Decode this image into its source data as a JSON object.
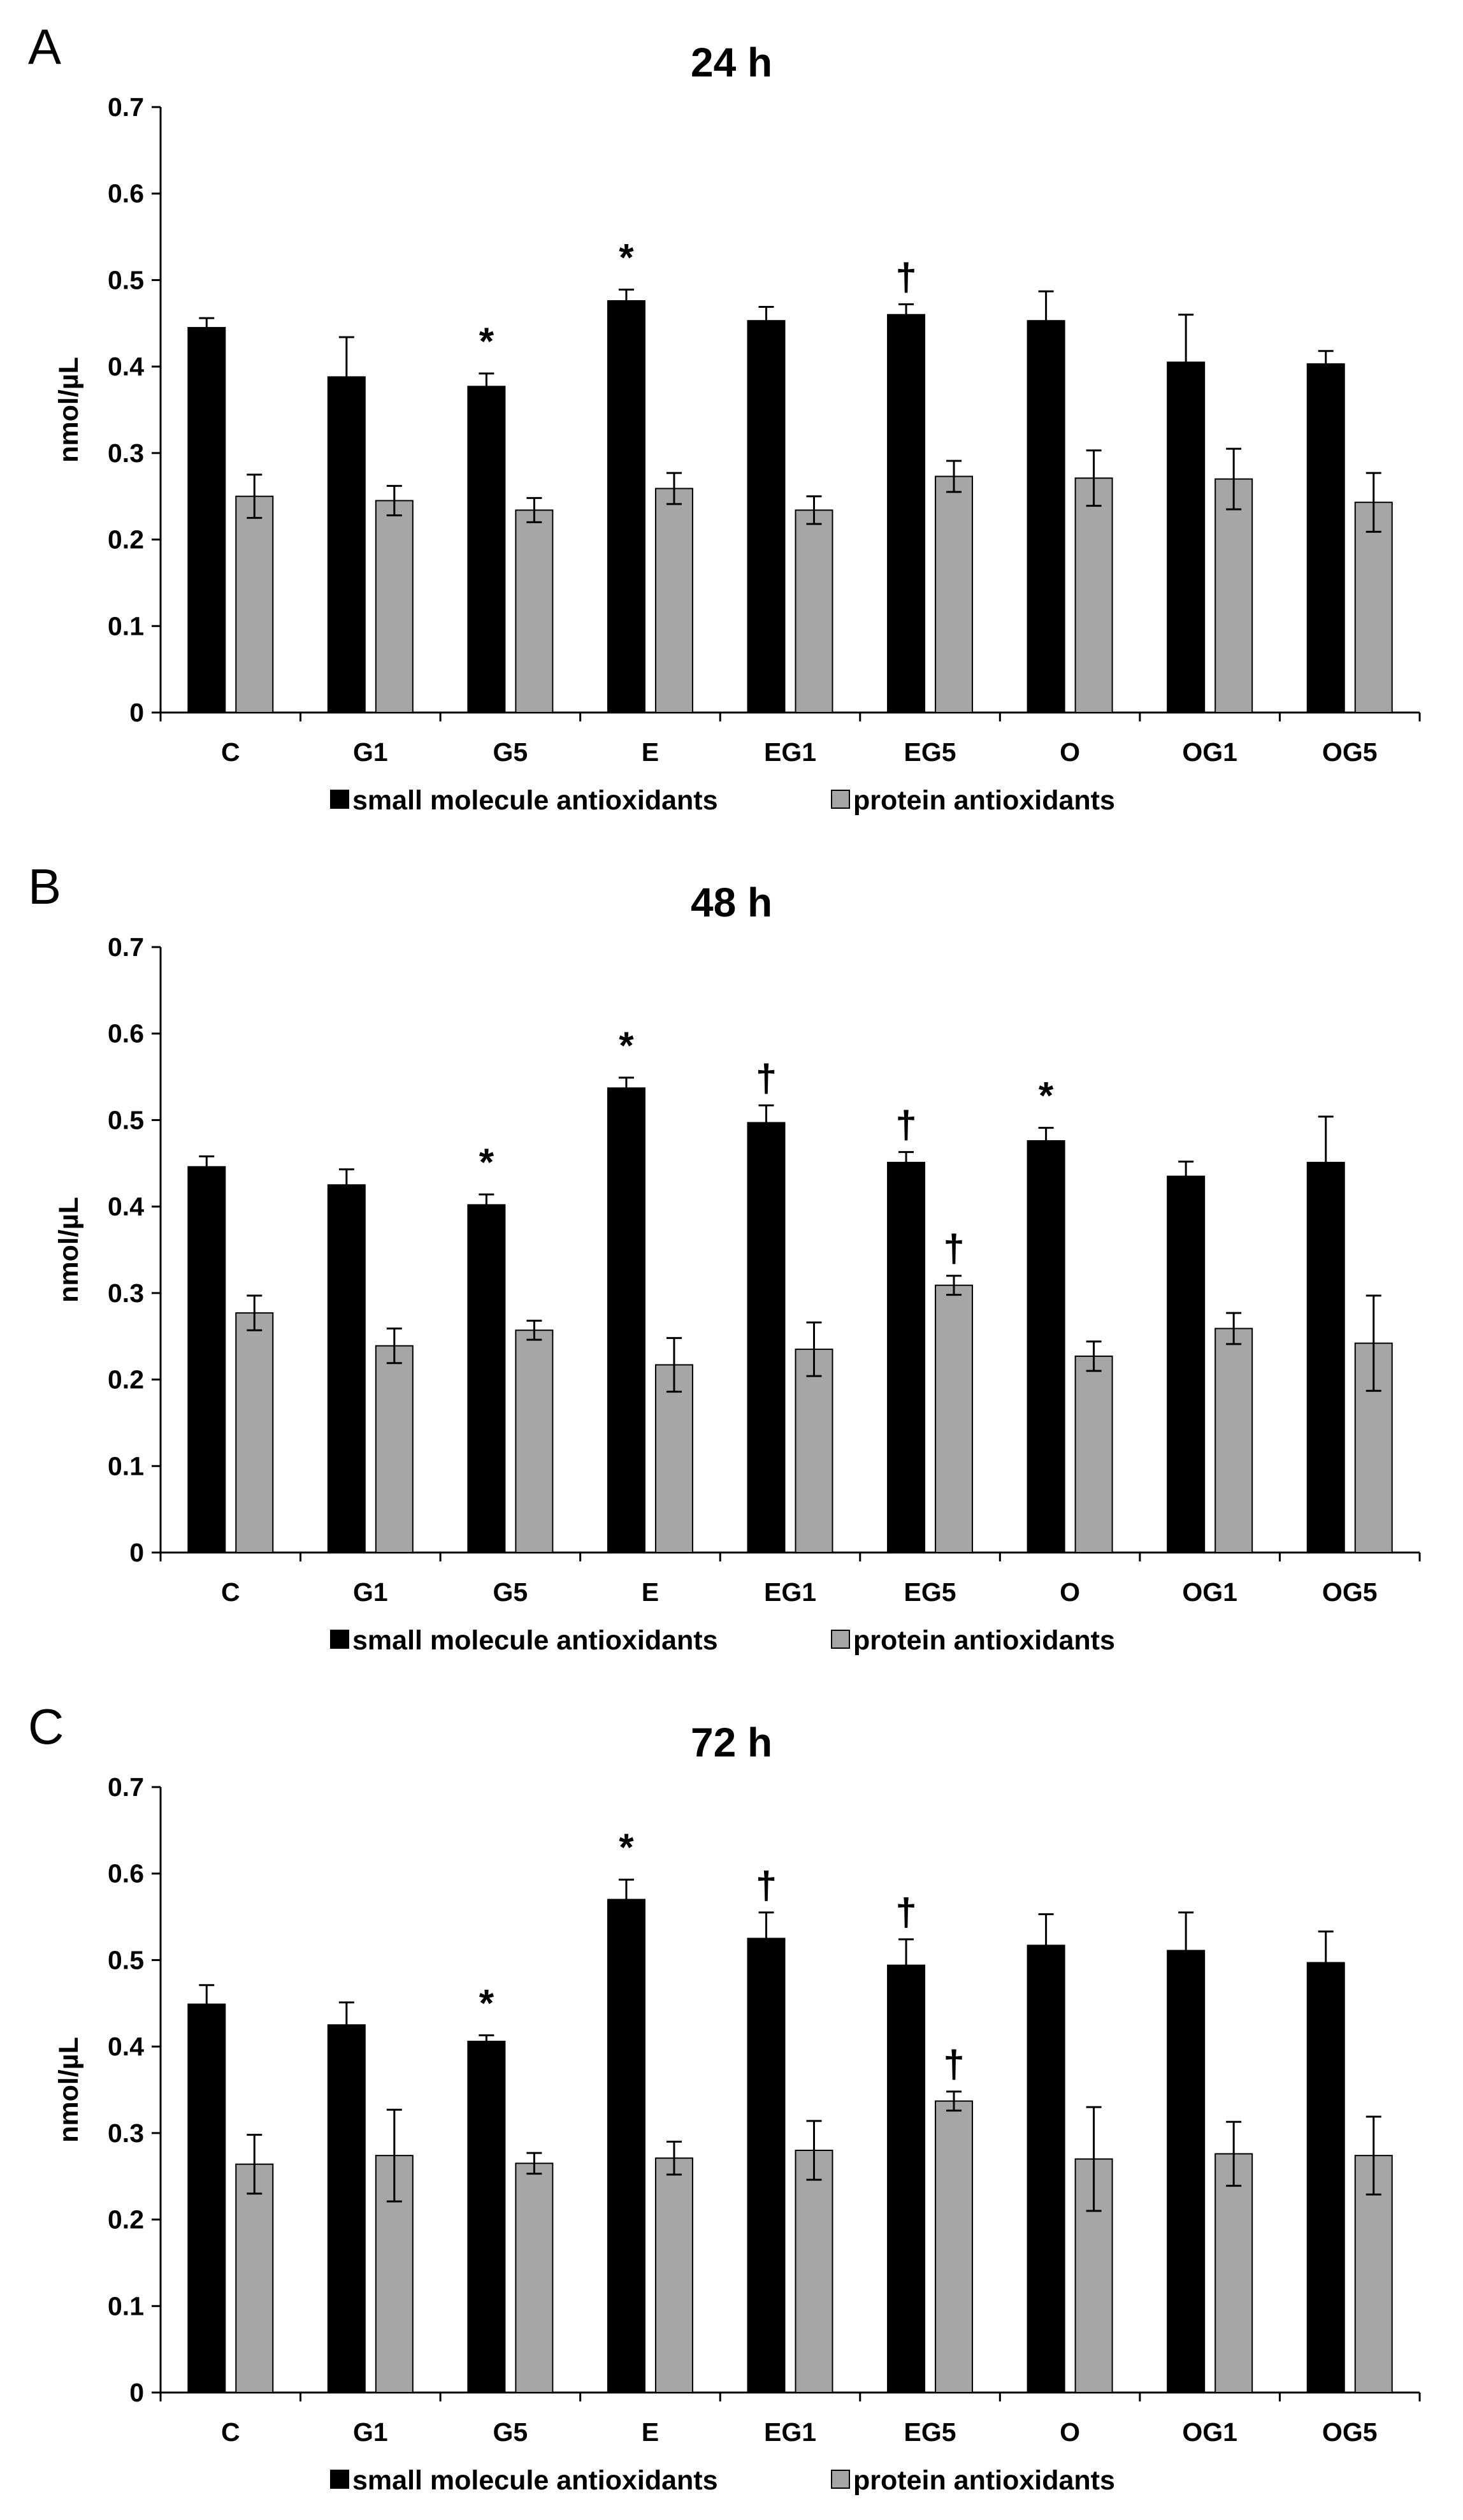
{
  "chart_data": [
    {
      "type": "bar",
      "panel": "A",
      "title": "24 h",
      "xlabel": "",
      "ylabel": "nmol/µL",
      "ylim": [
        0,
        0.7
      ],
      "yticks": [
        "0",
        "0.1",
        "0.2",
        "0.3",
        "0.4",
        "0.5",
        "0.6",
        "0.7"
      ],
      "grid": false,
      "legend_position": "bottom",
      "categories": [
        "C",
        "G1",
        "G5",
        "E",
        "EG1",
        "EG5",
        "O",
        "OG1",
        "OG5"
      ],
      "series": [
        {
          "name": "small molecule antioxidants",
          "color": "#000000",
          "values": [
            0.445,
            0.388,
            0.377,
            0.476,
            0.453,
            0.46,
            0.453,
            0.405,
            0.403
          ],
          "errors": [
            0.011,
            0.046,
            0.015,
            0.013,
            0.016,
            0.012,
            0.034,
            0.055,
            0.015
          ],
          "markers": [
            "",
            "",
            "*",
            "*",
            "",
            "†",
            "",
            "",
            ""
          ]
        },
        {
          "name": "protein antioxidants",
          "color": "#a6a6a6",
          "values": [
            0.25,
            0.245,
            0.234,
            0.259,
            0.234,
            0.273,
            0.271,
            0.27,
            0.243
          ],
          "errors": [
            0.025,
            0.017,
            0.014,
            0.018,
            0.016,
            0.018,
            0.032,
            0.035,
            0.034
          ],
          "markers": [
            "",
            "",
            "",
            "",
            "",
            "",
            "",
            "",
            ""
          ]
        }
      ]
    },
    {
      "type": "bar",
      "panel": "B",
      "title": "48 h",
      "xlabel": "",
      "ylabel": "nmol/µL",
      "ylim": [
        0,
        0.7
      ],
      "yticks": [
        "0",
        "0.1",
        "0.2",
        "0.3",
        "0.4",
        "0.5",
        "0.6",
        "0.7"
      ],
      "grid": false,
      "legend_position": "bottom",
      "categories": [
        "C",
        "G1",
        "G5",
        "E",
        "EG1",
        "EG5",
        "O",
        "OG1",
        "OG5"
      ],
      "series": [
        {
          "name": "small molecule antioxidants",
          "color": "#000000",
          "values": [
            0.446,
            0.425,
            0.402,
            0.537,
            0.497,
            0.451,
            0.476,
            0.435,
            0.451
          ],
          "errors": [
            0.012,
            0.018,
            0.012,
            0.012,
            0.02,
            0.012,
            0.015,
            0.017,
            0.053
          ],
          "markers": [
            "",
            "",
            "*",
            "*",
            "†",
            "†",
            "*",
            "",
            ""
          ]
        },
        {
          "name": "protein antioxidants",
          "color": "#a6a6a6",
          "values": [
            0.277,
            0.239,
            0.257,
            0.217,
            0.235,
            0.309,
            0.227,
            0.259,
            0.242
          ],
          "errors": [
            0.02,
            0.02,
            0.011,
            0.031,
            0.031,
            0.011,
            0.017,
            0.018,
            0.055
          ],
          "markers": [
            "",
            "",
            "",
            "",
            "",
            "†",
            "",
            "",
            ""
          ]
        }
      ]
    },
    {
      "type": "bar",
      "panel": "C",
      "title": "72 h",
      "xlabel": "",
      "ylabel": "nmol/µL",
      "ylim": [
        0,
        0.7
      ],
      "yticks": [
        "0",
        "0.1",
        "0.2",
        "0.3",
        "0.4",
        "0.5",
        "0.6",
        "0.7"
      ],
      "grid": false,
      "legend_position": "bottom",
      "categories": [
        "C",
        "G1",
        "G5",
        "E",
        "EG1",
        "EG5",
        "O",
        "OG1",
        "OG5"
      ],
      "series": [
        {
          "name": "small molecule antioxidants",
          "color": "#000000",
          "values": [
            0.449,
            0.425,
            0.406,
            0.57,
            0.525,
            0.494,
            0.517,
            0.511,
            0.497
          ],
          "errors": [
            0.022,
            0.026,
            0.007,
            0.023,
            0.03,
            0.03,
            0.036,
            0.044,
            0.036
          ],
          "markers": [
            "",
            "",
            "*",
            "*",
            "†",
            "†",
            "",
            "",
            ""
          ]
        },
        {
          "name": "protein antioxidants",
          "color": "#a6a6a6",
          "values": [
            0.264,
            0.274,
            0.265,
            0.271,
            0.28,
            0.337,
            0.27,
            0.276,
            0.274
          ],
          "errors": [
            0.034,
            0.053,
            0.012,
            0.019,
            0.034,
            0.011,
            0.06,
            0.037,
            0.045
          ],
          "markers": [
            "",
            "",
            "",
            "",
            "",
            "†",
            "",
            "",
            ""
          ]
        }
      ]
    }
  ]
}
